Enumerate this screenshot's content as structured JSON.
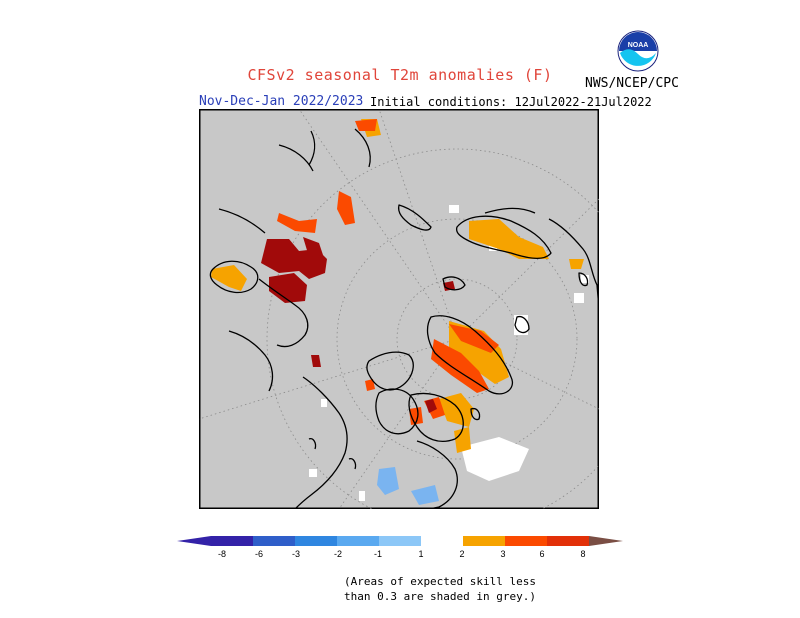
{
  "header": {
    "title": "CFSv2 seasonal T2m anomalies (F)",
    "period": "Nov-Dec-Jan 2022/2023",
    "initial_conditions": "Initial conditions: 12Jul2022-21Jul2022",
    "agency": "NWS/NCEP/CPC",
    "logo_text": "NOAA"
  },
  "legend": {
    "labels": [
      "-8",
      "-6",
      "-3",
      "-2",
      "-1",
      "1",
      "2",
      "3",
      "6",
      "8"
    ],
    "colors": [
      "#3322a8",
      "#2f5ec9",
      "#2f86e0",
      "#5aa9f0",
      "#8cc7f7",
      "#ffffff",
      "#f6a300",
      "#fb4a00",
      "#e23008",
      "#a10a0a",
      "#c09a8c",
      "#7a4e44"
    ]
  },
  "note": {
    "line1": "(Areas of expected skill less",
    "line2": "than 0.3 are shaded in grey.)"
  },
  "map": {
    "background_color": "#c8c8c8",
    "projection": "north-polar-stereographic"
  }
}
